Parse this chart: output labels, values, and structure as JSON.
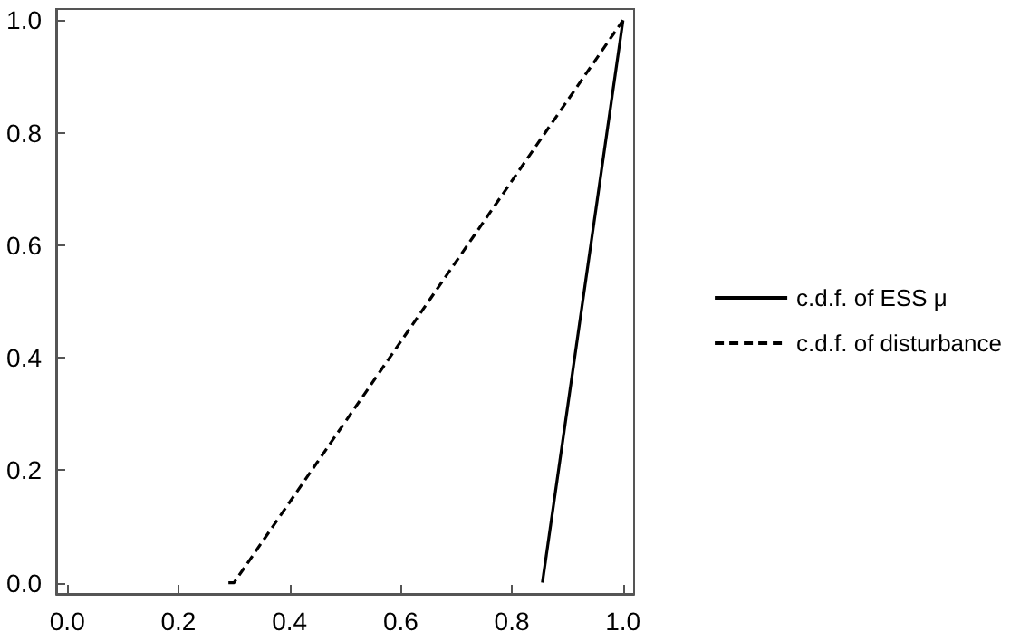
{
  "chart_data": {
    "type": "line",
    "xlim": [
      -0.02,
      1.02
    ],
    "ylim": [
      -0.02,
      1.02
    ],
    "xticks": [
      {
        "value": 0,
        "label": "0.0"
      },
      {
        "value": 0.2,
        "label": "0.2"
      },
      {
        "value": 0.4,
        "label": "0.4"
      },
      {
        "value": 0.6,
        "label": "0.6"
      },
      {
        "value": 0.8,
        "label": "0.8"
      },
      {
        "value": 1,
        "label": "1.0"
      }
    ],
    "yticks": [
      {
        "value": 0,
        "label": "0.0"
      },
      {
        "value": 0.2,
        "label": "0.2"
      },
      {
        "value": 0.4,
        "label": "0.4"
      },
      {
        "value": 0.6,
        "label": "0.6"
      },
      {
        "value": 0.8,
        "label": "0.8"
      },
      {
        "value": 1,
        "label": "1.0"
      }
    ],
    "series": [
      {
        "name": "c.d.f. of ESS μ",
        "color": "#000000",
        "line_style": "solid",
        "x": [
          0.855,
          1.0
        ],
        "values": [
          0,
          1
        ]
      },
      {
        "name": "c.d.f. of disturbance",
        "color": "#000000",
        "line_style": "dashed",
        "x": [
          0.29,
          0.3,
          1.0
        ],
        "values": [
          0,
          0,
          1
        ]
      }
    ],
    "legend": "right",
    "grid": false,
    "marker": "none"
  }
}
